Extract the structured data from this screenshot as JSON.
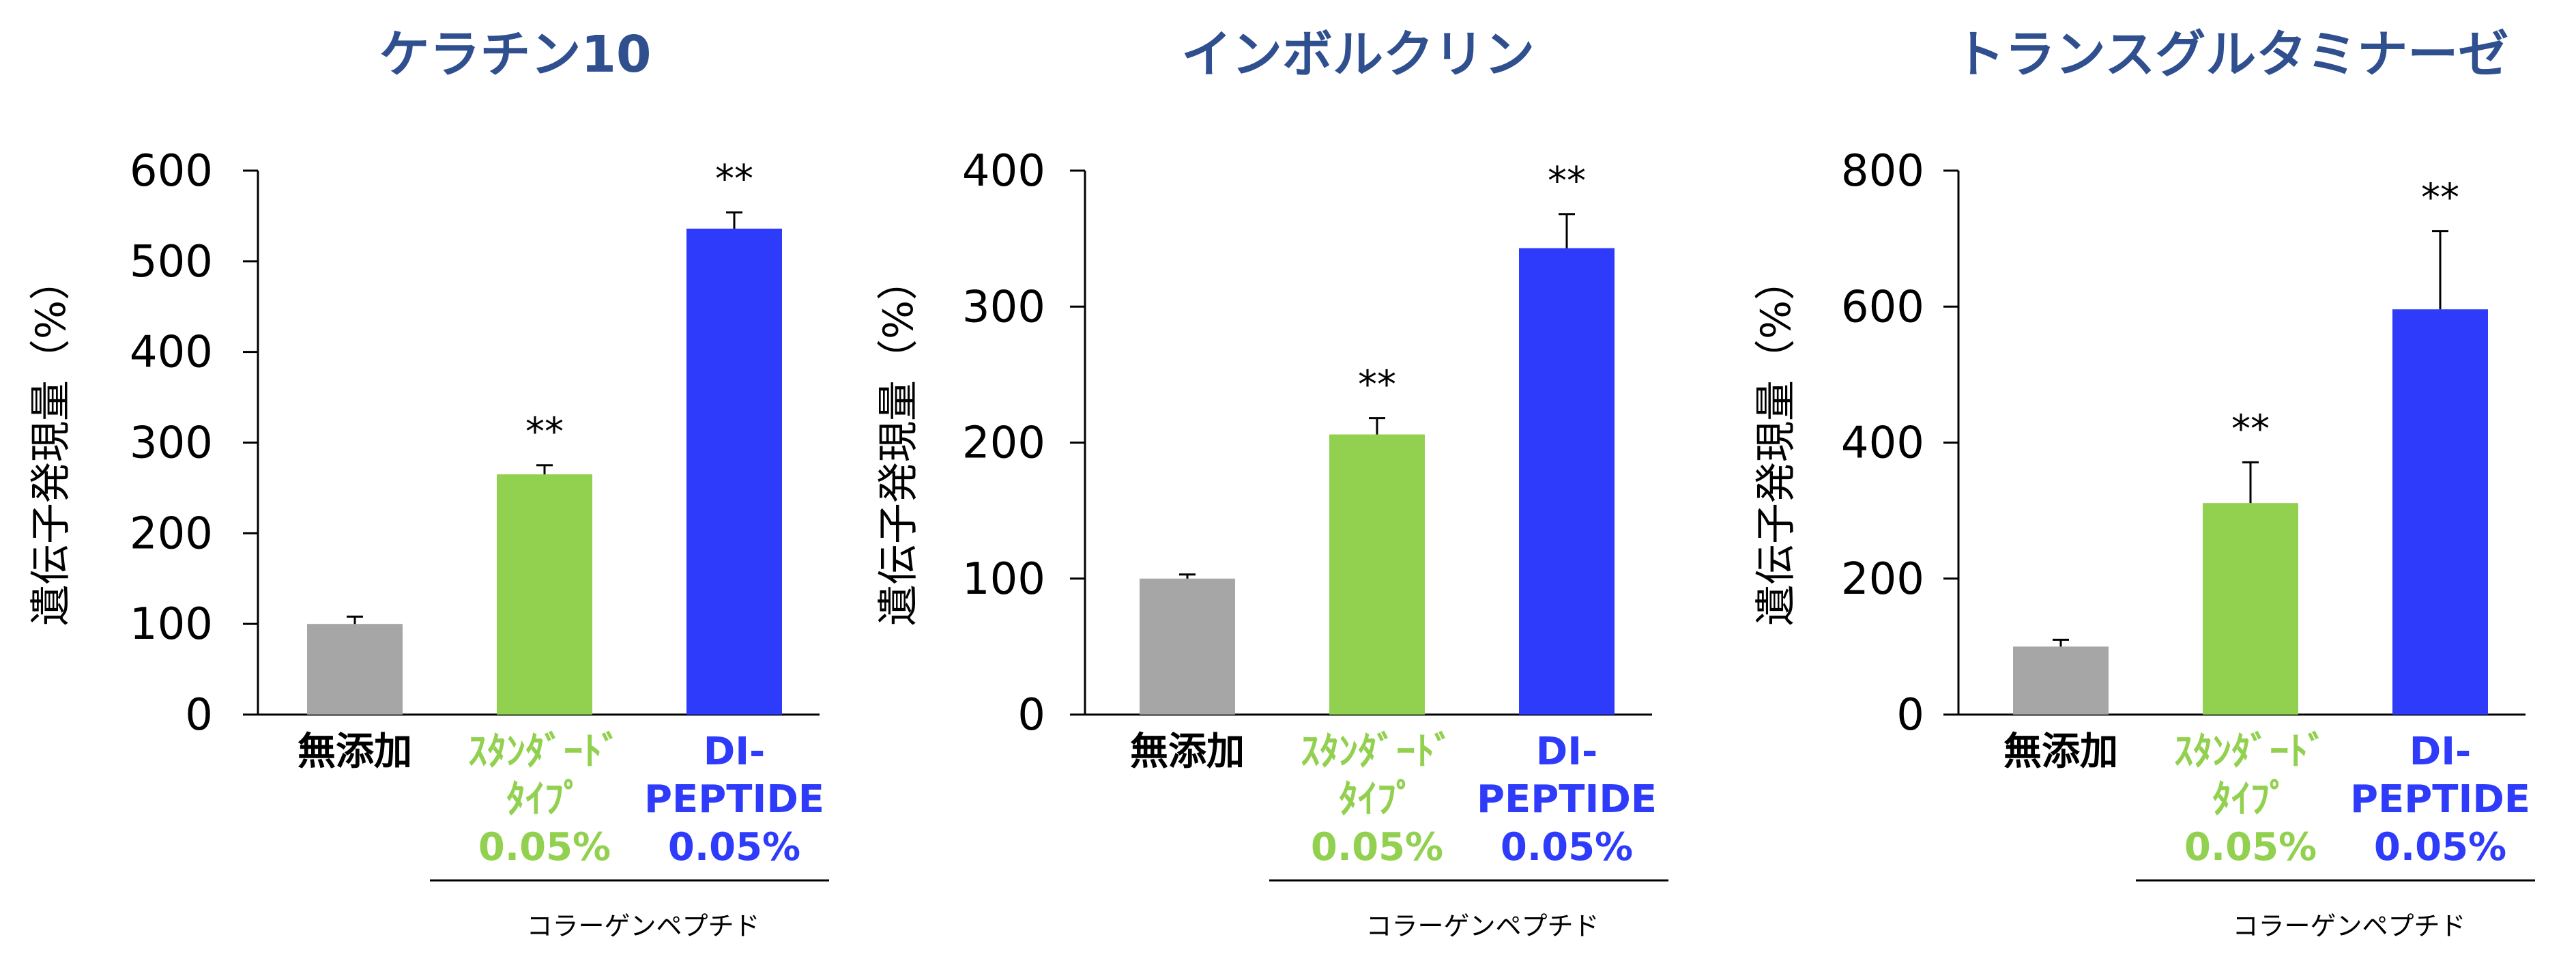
{
  "colors": {
    "title": "#2F4F8F",
    "control": "#A6A6A6",
    "standard": "#92D050",
    "dipeptide": "#2E3BFA",
    "axis": "#000000"
  },
  "chart_data": [
    {
      "type": "bar",
      "title": "ケラチン10",
      "ylabel": "遺伝子発現量（%）",
      "ylim": [
        0,
        600
      ],
      "yticks": [
        "0",
        "100",
        "200",
        "300",
        "400",
        "500",
        "600"
      ],
      "categories": [
        [
          "無添加"
        ],
        [
          "ｽﾀﾝﾀﾞｰﾄﾞ",
          "ﾀｲﾌﾟ",
          "0.05%"
        ],
        [
          "DI-",
          "PEPTIDE",
          "0.05%"
        ]
      ],
      "values": [
        100,
        265,
        536
      ],
      "errors": [
        8,
        10,
        18
      ],
      "significance": [
        "",
        "**",
        "**"
      ],
      "group_label": "コラーゲンペプチド"
    },
    {
      "type": "bar",
      "title": "インボルクリン",
      "ylabel": "遺伝子発現量（%）",
      "ylim": [
        0,
        400
      ],
      "yticks": [
        "0",
        "100",
        "200",
        "300",
        "400"
      ],
      "categories": [
        [
          "無添加"
        ],
        [
          "ｽﾀﾝﾀﾞｰﾄﾞ",
          "ﾀｲﾌﾟ",
          "0.05%"
        ],
        [
          "DI-",
          "PEPTIDE",
          "0.05%"
        ]
      ],
      "values": [
        100,
        206,
        343
      ],
      "errors": [
        3,
        12,
        25
      ],
      "significance": [
        "",
        "**",
        "**"
      ],
      "group_label": "コラーゲンペプチド"
    },
    {
      "type": "bar",
      "title": "トランスグルタミナーゼ",
      "ylabel": "遺伝子発現量（%）",
      "ylim": [
        0,
        800
      ],
      "yticks": [
        "0",
        "200",
        "400",
        "600",
        "800"
      ],
      "categories": [
        [
          "無添加"
        ],
        [
          "ｽﾀﾝﾀﾞｰﾄﾞ",
          "ﾀｲﾌﾟ",
          "0.05%"
        ],
        [
          "DI-",
          "PEPTIDE",
          "0.05%"
        ]
      ],
      "values": [
        100,
        311,
        596
      ],
      "errors": [
        10,
        60,
        115
      ],
      "significance": [
        "",
        "**",
        "**"
      ],
      "group_label": "コラーゲンペプチド"
    }
  ]
}
